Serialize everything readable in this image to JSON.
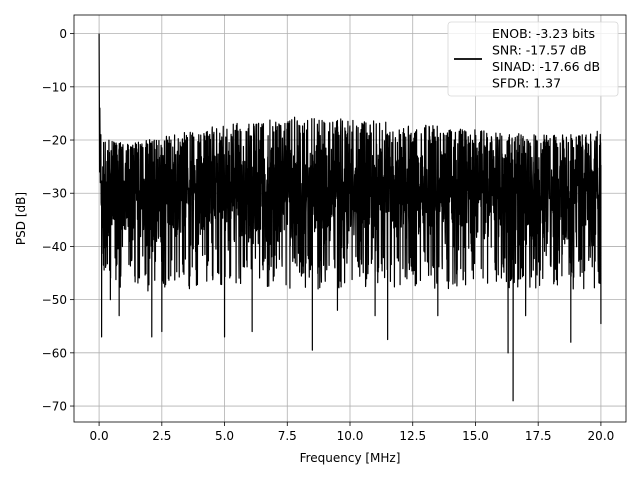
{
  "chart_data": {
    "type": "line",
    "title": "",
    "xlabel": "Frequency [MHz]",
    "ylabel": "PSD [dB]",
    "xlim": [
      -1.0,
      21.0
    ],
    "ylim": [
      -73.0,
      3.5
    ],
    "xticks": [
      0.0,
      2.5,
      5.0,
      7.5,
      10.0,
      12.5,
      15.0,
      17.5,
      20.0
    ],
    "xtick_labels": [
      "0.0",
      "2.5",
      "5.0",
      "7.5",
      "10.0",
      "12.5",
      "15.0",
      "17.5",
      "20.0"
    ],
    "yticks": [
      0,
      -10,
      -20,
      -30,
      -40,
      -50,
      -60,
      -70
    ],
    "ytick_labels": [
      "0",
      "−10",
      "−20",
      "−30",
      "−40",
      "−50",
      "−60",
      "−70"
    ],
    "grid": true,
    "legend_position": "top-right",
    "series": [
      {
        "name": "ENOB: -3.23 bits\nSNR: -17.57 dB\nSINAD: -17.66 dB\nSFDR: 1.37",
        "legend_lines": [
          "ENOB: -3.23 bits",
          "SNR: -17.57 dB",
          "SINAD: -17.66 dB",
          "SFDR: 1.37"
        ],
        "color": "#000000",
        "x_range": [
          0.0,
          20.0
        ],
        "peak": {
          "x": 0.0,
          "y": 0.0
        },
        "upper_envelope": {
          "x": [
            0.1,
            0.5,
            1.0,
            2.5,
            4.0,
            5.0,
            6.5,
            7.5,
            8.5,
            10.0,
            11.5,
            12.5,
            14.0,
            15.0,
            16.5,
            17.5,
            19.0,
            20.0
          ],
          "y": [
            -19.5,
            -20.0,
            -20.5,
            -19.5,
            -18.0,
            -17.0,
            -16.5,
            -15.5,
            -16.0,
            -16.0,
            -16.5,
            -17.0,
            -17.5,
            -18.0,
            -18.5,
            -19.0,
            -19.0,
            -18.0
          ]
        },
        "band_center": -30,
        "min_dips": [
          {
            "x": 0.1,
            "y": -57
          },
          {
            "x": 0.45,
            "y": -50
          },
          {
            "x": 0.8,
            "y": -53
          },
          {
            "x": 2.1,
            "y": -57
          },
          {
            "x": 2.5,
            "y": -56
          },
          {
            "x": 5.0,
            "y": -57
          },
          {
            "x": 6.1,
            "y": -56
          },
          {
            "x": 8.5,
            "y": -59.5
          },
          {
            "x": 9.5,
            "y": -52
          },
          {
            "x": 11.0,
            "y": -53
          },
          {
            "x": 11.5,
            "y": -57.5
          },
          {
            "x": 13.5,
            "y": -53
          },
          {
            "x": 16.3,
            "y": -60
          },
          {
            "x": 16.5,
            "y": -69
          },
          {
            "x": 17.0,
            "y": -53
          },
          {
            "x": 18.8,
            "y": -58
          },
          {
            "x": 20.0,
            "y": -54.5
          }
        ]
      }
    ]
  }
}
